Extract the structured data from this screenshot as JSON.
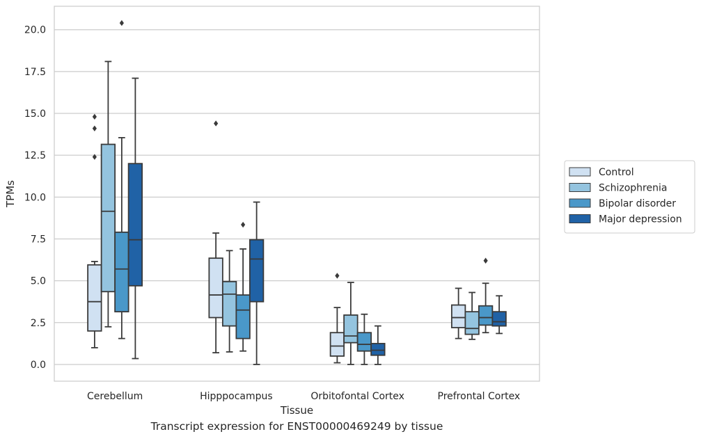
{
  "caption": "Transcript expression for ENST00000469249 by tissue",
  "chart_data": {
    "type": "boxplot",
    "xlabel": "Tissue",
    "ylabel": "TPMs",
    "ylim": [
      -1.0,
      21.4
    ],
    "yticks": [
      0.0,
      2.5,
      5.0,
      7.5,
      10.0,
      12.5,
      15.0,
      17.5,
      20.0
    ],
    "ytick_labels": [
      "0.0",
      "2.5",
      "5.0",
      "7.5",
      "10.0",
      "12.5",
      "15.0",
      "17.5",
      "20.0"
    ],
    "grid": "horizontal",
    "legend_position": "right",
    "categories": [
      "Cerebellum",
      "Hipppocampus",
      "Orbitofontal Cortex",
      "Prefrontal Cortex"
    ],
    "series": [
      {
        "name": "Control",
        "color": "#d0e1f2",
        "boxes": [
          {
            "whislo": 1.0,
            "q1": 2.0,
            "med": 3.75,
            "q3": 5.95,
            "whishi": 6.15,
            "fliers": [
              12.4,
              14.1,
              14.8
            ]
          },
          {
            "whislo": 0.7,
            "q1": 2.8,
            "med": 4.15,
            "q3": 6.35,
            "whishi": 7.85,
            "fliers": [
              14.4
            ]
          },
          {
            "whislo": 0.1,
            "q1": 0.5,
            "med": 1.1,
            "q3": 1.9,
            "whishi": 3.4,
            "fliers": [
              5.3
            ]
          },
          {
            "whislo": 1.55,
            "q1": 2.2,
            "med": 2.8,
            "q3": 3.55,
            "whishi": 4.55,
            "fliers": []
          }
        ]
      },
      {
        "name": "Schizophrenia",
        "color": "#94c4df",
        "boxes": [
          {
            "whislo": 2.25,
            "q1": 4.35,
            "med": 9.15,
            "q3": 13.15,
            "whishi": 18.1,
            "fliers": []
          },
          {
            "whislo": 0.75,
            "q1": 2.3,
            "med": 4.2,
            "q3": 4.95,
            "whishi": 6.8,
            "fliers": []
          },
          {
            "whislo": 0.0,
            "q1": 1.3,
            "med": 1.7,
            "q3": 2.95,
            "whishi": 4.9,
            "fliers": []
          },
          {
            "whislo": 1.5,
            "q1": 1.8,
            "med": 2.15,
            "q3": 3.15,
            "whishi": 4.3,
            "fliers": []
          }
        ]
      },
      {
        "name": "Bipolar disorder",
        "color": "#4a98c9",
        "boxes": [
          {
            "whislo": 1.55,
            "q1": 3.15,
            "med": 5.7,
            "q3": 7.9,
            "whishi": 13.55,
            "fliers": [
              20.4
            ]
          },
          {
            "whislo": 0.8,
            "q1": 1.55,
            "med": 3.25,
            "q3": 4.15,
            "whishi": 6.9,
            "fliers": [
              8.35
            ]
          },
          {
            "whislo": 0.0,
            "q1": 0.8,
            "med": 1.2,
            "q3": 1.9,
            "whishi": 3.0,
            "fliers": []
          },
          {
            "whislo": 1.9,
            "q1": 2.35,
            "med": 2.8,
            "q3": 3.5,
            "whishi": 4.85,
            "fliers": [
              6.2
            ]
          }
        ]
      },
      {
        "name": "Major depression",
        "color": "#2062a6",
        "boxes": [
          {
            "whislo": 0.35,
            "q1": 4.7,
            "med": 7.45,
            "q3": 12.0,
            "whishi": 17.1,
            "fliers": []
          },
          {
            "whislo": 0.0,
            "q1": 3.75,
            "med": 6.3,
            "q3": 7.45,
            "whishi": 9.7,
            "fliers": []
          },
          {
            "whislo": 0.0,
            "q1": 0.55,
            "med": 0.85,
            "q3": 1.25,
            "whishi": 2.3,
            "fliers": []
          },
          {
            "whislo": 1.85,
            "q1": 2.3,
            "med": 2.55,
            "q3": 3.15,
            "whishi": 4.1,
            "fliers": []
          }
        ]
      }
    ]
  }
}
